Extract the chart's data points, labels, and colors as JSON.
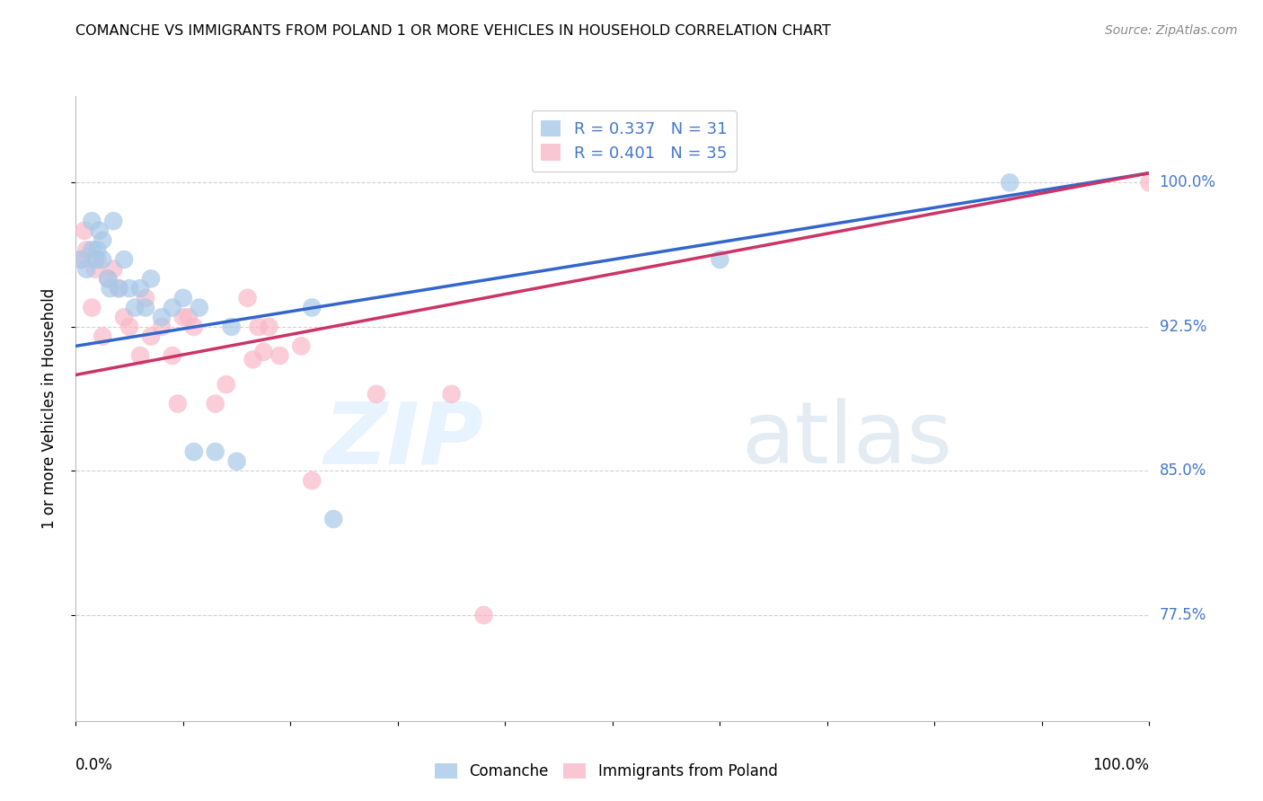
{
  "title": "COMANCHE VS IMMIGRANTS FROM POLAND 1 OR MORE VEHICLES IN HOUSEHOLD CORRELATION CHART",
  "source": "Source: ZipAtlas.com",
  "ylabel": "1 or more Vehicles in Household",
  "ytick_labels": [
    "77.5%",
    "85.0%",
    "92.5%",
    "100.0%"
  ],
  "ytick_values": [
    0.775,
    0.85,
    0.925,
    1.0
  ],
  "xlim": [
    0.0,
    1.0
  ],
  "ylim": [
    0.72,
    1.045
  ],
  "legend_blue_r": "R = 0.337",
  "legend_blue_n": "N = 31",
  "legend_pink_r": "R = 0.401",
  "legend_pink_n": "N = 35",
  "blue_color": "#a8c8e8",
  "pink_color": "#f8b8c8",
  "blue_line_color": "#3366cc",
  "pink_line_color": "#cc3366",
  "watermark_zip": "ZIP",
  "watermark_atlas": "atlas",
  "comanche_x": [
    0.005,
    0.01,
    0.015,
    0.015,
    0.018,
    0.02,
    0.022,
    0.025,
    0.025,
    0.03,
    0.032,
    0.035,
    0.04,
    0.045,
    0.05,
    0.055,
    0.06,
    0.065,
    0.07,
    0.08,
    0.09,
    0.1,
    0.11,
    0.115,
    0.13,
    0.145,
    0.15,
    0.22,
    0.24,
    0.6,
    0.87
  ],
  "comanche_y": [
    0.96,
    0.955,
    0.98,
    0.965,
    0.96,
    0.965,
    0.975,
    0.97,
    0.96,
    0.95,
    0.945,
    0.98,
    0.945,
    0.96,
    0.945,
    0.935,
    0.945,
    0.935,
    0.95,
    0.93,
    0.935,
    0.94,
    0.86,
    0.935,
    0.86,
    0.925,
    0.855,
    0.935,
    0.825,
    0.96,
    1.0
  ],
  "poland_x": [
    0.005,
    0.008,
    0.01,
    0.015,
    0.018,
    0.02,
    0.025,
    0.03,
    0.035,
    0.04,
    0.045,
    0.05,
    0.06,
    0.065,
    0.07,
    0.08,
    0.09,
    0.095,
    0.1,
    0.105,
    0.11,
    0.13,
    0.14,
    0.16,
    0.165,
    0.17,
    0.175,
    0.18,
    0.19,
    0.21,
    0.22,
    0.28,
    0.35,
    0.38,
    1.0
  ],
  "poland_y": [
    0.96,
    0.975,
    0.965,
    0.935,
    0.955,
    0.96,
    0.92,
    0.95,
    0.955,
    0.945,
    0.93,
    0.925,
    0.91,
    0.94,
    0.92,
    0.925,
    0.91,
    0.885,
    0.93,
    0.93,
    0.925,
    0.885,
    0.895,
    0.94,
    0.908,
    0.925,
    0.912,
    0.925,
    0.91,
    0.915,
    0.845,
    0.89,
    0.89,
    0.775,
    1.0
  ],
  "blue_trendline_x": [
    0.0,
    1.0
  ],
  "blue_trendline_y_start": 0.915,
  "blue_trendline_y_end": 1.005,
  "pink_trendline_y_start": 0.9,
  "pink_trendline_y_end": 1.005,
  "xtick_positions": [
    0.0,
    0.1,
    0.2,
    0.3,
    0.4,
    0.5,
    0.6,
    0.7,
    0.8,
    0.9,
    1.0
  ]
}
